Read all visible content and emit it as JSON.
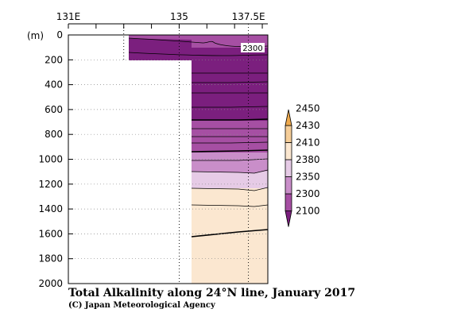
{
  "chart_data": {
    "type": "heatmap",
    "subtype": "vertical-section-contour",
    "title": "Total Alkalinity along 24°N line, January 2017",
    "credit": "(C) Japan Meteorological Agency",
    "x_ticks": [
      "131E",
      "135",
      "137.5E"
    ],
    "x_tick_values": [
      131,
      135,
      137.5
    ],
    "xlim": [
      131,
      138.2
    ],
    "y_unit": "(m)",
    "ylim": [
      0,
      2000
    ],
    "y_ticks": [
      0,
      200,
      400,
      600,
      800,
      1000,
      1200,
      1400,
      1600,
      1800,
      2000
    ],
    "y_inverted": true,
    "stations_lon": [
      133,
      135,
      137.5
    ],
    "station_max_depth": [
      200,
      2000,
      2000
    ],
    "contour_label": "2300",
    "colorbar": {
      "levels": [
        2100,
        2300,
        2350,
        2380,
        2410,
        2430,
        2450
      ],
      "colors": [
        "#7b1f7e",
        "#a64fa3",
        "#c98ec9",
        "#e6cbe6",
        "#fbe7d0",
        "#f5cd98",
        "#eea94d"
      ],
      "extend": "both"
    },
    "filled_bands": [
      {
        "range": [
          2100,
          2300
        ],
        "color": "#a64fa3",
        "depth_top": 0,
        "depth_bottom": 700
      },
      {
        "range": [
          2300,
          2350
        ],
        "color": "#c98ec9",
        "depth_top": 700,
        "depth_bottom": 950
      },
      {
        "range": [
          2350,
          2380
        ],
        "color": "#e6cbe6",
        "depth_top": 950,
        "depth_bottom": 1230
      },
      {
        "range": [
          2380,
          2410
        ],
        "color": "#fbe7d0",
        "depth_top": 1230,
        "depth_bottom": 2000
      }
    ]
  }
}
